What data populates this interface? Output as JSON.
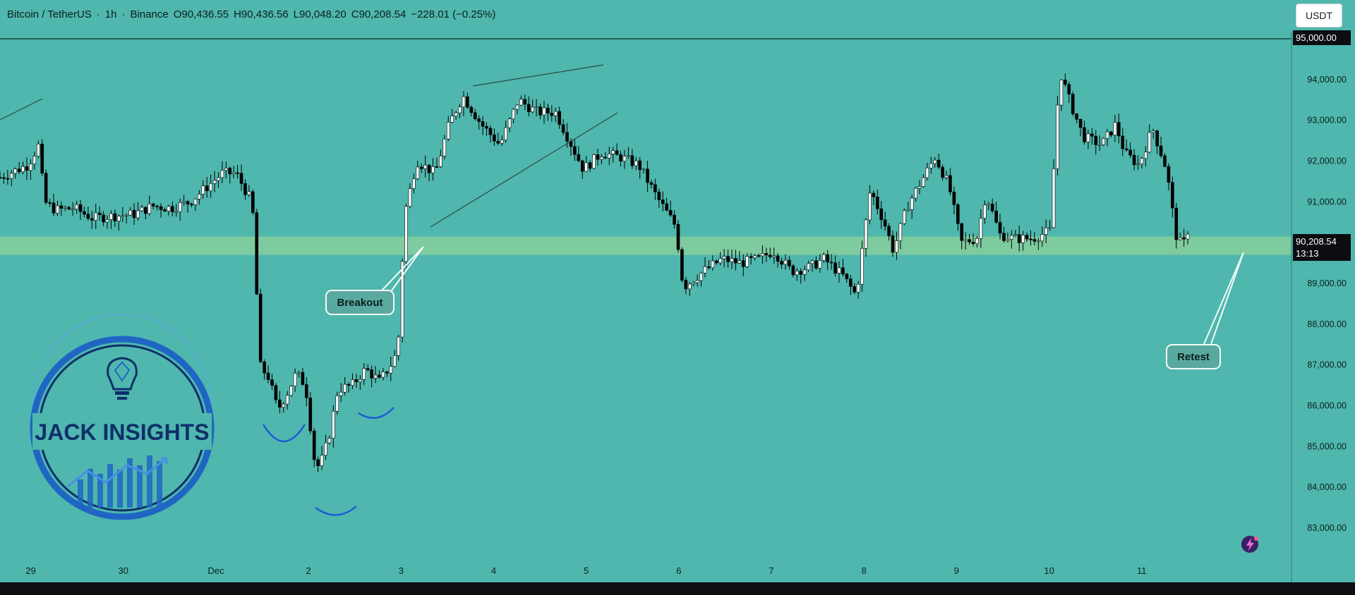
{
  "header": {
    "symbol": "Bitcoin / TetherUS",
    "interval": "1h",
    "exchange": "Binance",
    "open": "O90,436.55",
    "high": "H90,436.56",
    "low": "L90,048.20",
    "close": "C90,208.54",
    "change": "−228.01 (−0.25%)",
    "separator": "·"
  },
  "currency_button": "USDT",
  "last_price": {
    "value": "90,208.54",
    "countdown": "13:13"
  },
  "top_price_tag": "95,000.00",
  "annotations": {
    "breakout": "Breakout",
    "retest": "Retest"
  },
  "watermark": {
    "text": "JACK INSIGHTS"
  },
  "colors": {
    "chart_bg": "#4fb7ad",
    "zone": "#7ecb9f",
    "bull_body": "#ffffff",
    "bear_body": "#000000",
    "wick": "#000000",
    "curve": "#1f57d8",
    "logo_blue": "#1f66c4",
    "logo_dark": "#0f2f6b"
  },
  "chart_data": {
    "type": "candlestick",
    "title": "Bitcoin / TetherUS · 1h · Binance",
    "ylim": [
      82500,
      95000
    ],
    "y_ticks": [
      {
        "value": 95000,
        "label": "95,000.00"
      },
      {
        "value": 94000,
        "label": "94,000.00"
      },
      {
        "value": 93000,
        "label": "93,000.00"
      },
      {
        "value": 92000,
        "label": "92,000.00"
      },
      {
        "value": 91000,
        "label": "91,000.00"
      },
      {
        "value": 90000,
        "label": "90,000.00"
      },
      {
        "value": 89000,
        "label": "89,000.00"
      },
      {
        "value": 88000,
        "label": "88,000.00"
      },
      {
        "value": 87000,
        "label": "87,000.00"
      },
      {
        "value": 86000,
        "label": "86,000.00"
      },
      {
        "value": 85000,
        "label": "85,000.00"
      },
      {
        "value": 84000,
        "label": "84,000.00"
      },
      {
        "value": 83000,
        "label": "83,000.00"
      }
    ],
    "x_ticks": [
      {
        "t": 0.5,
        "label": "29"
      },
      {
        "t": 1.5,
        "label": "30"
      },
      {
        "t": 2.5,
        "label": "Dec"
      },
      {
        "t": 3.5,
        "label": "2"
      },
      {
        "t": 4.5,
        "label": "3"
      },
      {
        "t": 5.5,
        "label": "4"
      },
      {
        "t": 6.5,
        "label": "5"
      },
      {
        "t": 7.5,
        "label": "6"
      },
      {
        "t": 8.5,
        "label": "7"
      },
      {
        "t": 9.5,
        "label": "8"
      },
      {
        "t": 10.5,
        "label": "9"
      },
      {
        "t": 11.5,
        "label": "10"
      },
      {
        "t": 12.5,
        "label": "11"
      }
    ],
    "x_range": [
      0,
      13.95
    ],
    "anchor_closes": [
      [
        0.0,
        91600
      ],
      [
        0.3,
        91900
      ],
      [
        0.42,
        92400
      ],
      [
        0.48,
        91000
      ],
      [
        0.6,
        90800
      ],
      [
        0.8,
        90850
      ],
      [
        1.0,
        90600
      ],
      [
        1.2,
        90650
      ],
      [
        1.45,
        90700
      ],
      [
        1.65,
        90900
      ],
      [
        1.85,
        90850
      ],
      [
        2.05,
        91000
      ],
      [
        2.2,
        91300
      ],
      [
        2.4,
        91700
      ],
      [
        2.55,
        91700
      ],
      [
        2.72,
        91000
      ],
      [
        2.75,
        90200
      ],
      [
        2.8,
        87000
      ],
      [
        2.9,
        86700
      ],
      [
        3.0,
        85900
      ],
      [
        3.1,
        86300
      ],
      [
        3.2,
        86800
      ],
      [
        3.3,
        86500
      ],
      [
        3.4,
        84600
      ],
      [
        3.45,
        84500
      ],
      [
        3.55,
        85200
      ],
      [
        3.65,
        86400
      ],
      [
        3.8,
        86500
      ],
      [
        3.95,
        86900
      ],
      [
        4.1,
        86600
      ],
      [
        4.25,
        87100
      ],
      [
        4.3,
        87500
      ],
      [
        4.37,
        90700
      ],
      [
        4.5,
        92000
      ],
      [
        4.7,
        91700
      ],
      [
        4.85,
        92900
      ],
      [
        5.0,
        93600
      ],
      [
        5.2,
        92900
      ],
      [
        5.4,
        92400
      ],
      [
        5.6,
        93500
      ],
      [
        5.8,
        93200
      ],
      [
        6.0,
        93200
      ],
      [
        6.3,
        91800
      ],
      [
        6.5,
        92200
      ],
      [
        6.7,
        92100
      ],
      [
        6.9,
        91900
      ],
      [
        7.1,
        91100
      ],
      [
        7.3,
        90400
      ],
      [
        7.38,
        88900
      ],
      [
        7.6,
        89300
      ],
      [
        7.8,
        89600
      ],
      [
        8.0,
        89500
      ],
      [
        8.2,
        89600
      ],
      [
        8.35,
        89800
      ],
      [
        8.55,
        89300
      ],
      [
        8.75,
        89400
      ],
      [
        8.9,
        89600
      ],
      [
        9.1,
        89200
      ],
      [
        9.25,
        88700
      ],
      [
        9.3,
        89600
      ],
      [
        9.4,
        91300
      ],
      [
        9.55,
        90500
      ],
      [
        9.65,
        89800
      ],
      [
        9.8,
        90900
      ],
      [
        9.95,
        91500
      ],
      [
        10.1,
        92100
      ],
      [
        10.25,
        91400
      ],
      [
        10.38,
        90000
      ],
      [
        10.55,
        90100
      ],
      [
        10.65,
        91200
      ],
      [
        10.8,
        90200
      ],
      [
        10.95,
        90100
      ],
      [
        11.15,
        90100
      ],
      [
        11.35,
        90300
      ],
      [
        11.4,
        92700
      ],
      [
        11.45,
        94200
      ],
      [
        11.55,
        93500
      ],
      [
        11.7,
        92600
      ],
      [
        11.9,
        92400
      ],
      [
        12.05,
        92900
      ],
      [
        12.15,
        92200
      ],
      [
        12.3,
        91900
      ],
      [
        12.45,
        92800
      ],
      [
        12.6,
        91800
      ],
      [
        12.7,
        90200
      ],
      [
        12.77,
        89900
      ],
      [
        12.83,
        90208
      ]
    ],
    "key_levels": [
      {
        "name": "support-zone",
        "low": 89700,
        "high": 90150
      }
    ],
    "last_price": 90208.54
  }
}
